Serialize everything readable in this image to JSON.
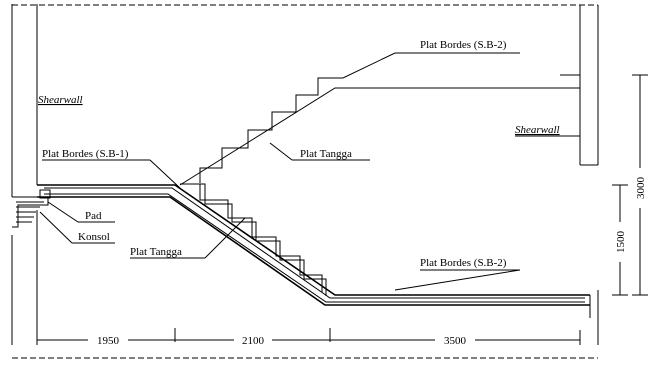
{
  "labels": [
    "Plat Bordes (S.B-2)",
    "Shearwall",
    "Plat Bordes (S.B-1)",
    "Plat Tangga",
    "Shearwall",
    "Pad",
    "Konsol",
    "Plat Tangga",
    "Plat Bordes (S.B-2)"
  ],
  "dimensions": {
    "horizontal": [
      "1950",
      "2100",
      "3500"
    ],
    "vertical": [
      "1500",
      "3000"
    ]
  }
}
